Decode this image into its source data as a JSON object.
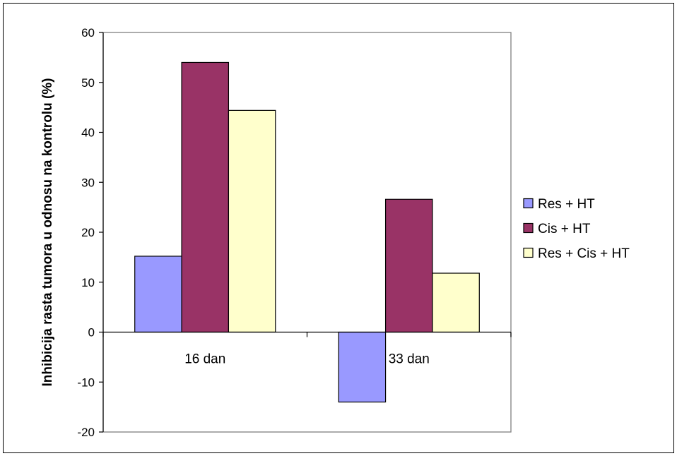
{
  "chart_data": {
    "type": "bar",
    "title": "",
    "xlabel": "",
    "ylabel": "Inhibicija rasta tumora u odnosu na kontrolu (%)",
    "categories": [
      "16 dan",
      "33 dan"
    ],
    "series": [
      {
        "name": "Res + HT",
        "values": [
          15.2,
          -14.0
        ],
        "color": "#9999ff"
      },
      {
        "name": "Cis + HT",
        "values": [
          54.0,
          26.6
        ],
        "color": "#993366"
      },
      {
        "name": "Res + Cis + HT",
        "values": [
          44.4,
          11.8
        ],
        "color": "#ffffcc"
      }
    ],
    "ylim": [
      -20,
      60
    ],
    "yticks": [
      "60",
      "50",
      "40",
      "30",
      "20",
      "10",
      "0",
      "-10",
      "-20"
    ],
    "grid": false,
    "legend": "right"
  }
}
